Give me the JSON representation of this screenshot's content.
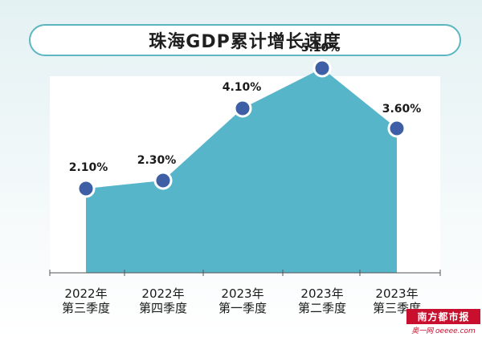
{
  "chart_data": {
    "type": "area",
    "title": "珠海GDP累计增长速度",
    "categories": [
      "2022年\n第三季度",
      "2022年\n第四季度",
      "2023年\n第一季度",
      "2023年\n第二季度",
      "2023年\n第三季度"
    ],
    "values": [
      2.1,
      2.3,
      4.1,
      5.1,
      3.6
    ],
    "value_labels": [
      "2.10%",
      "2.30%",
      "4.10%",
      "5.10%",
      "3.60%"
    ],
    "ylim": [
      0,
      6
    ],
    "grid": false,
    "colors": {
      "area": "#57b5c9",
      "marker_fill": "#3e5fa6",
      "marker_stroke": "#ffffff",
      "plot_bg": "#ffffff",
      "title_border": "#5bb6bf"
    }
  },
  "watermark": {
    "top": "南方都市报",
    "bottom": "奥一网 oeeee.com"
  }
}
